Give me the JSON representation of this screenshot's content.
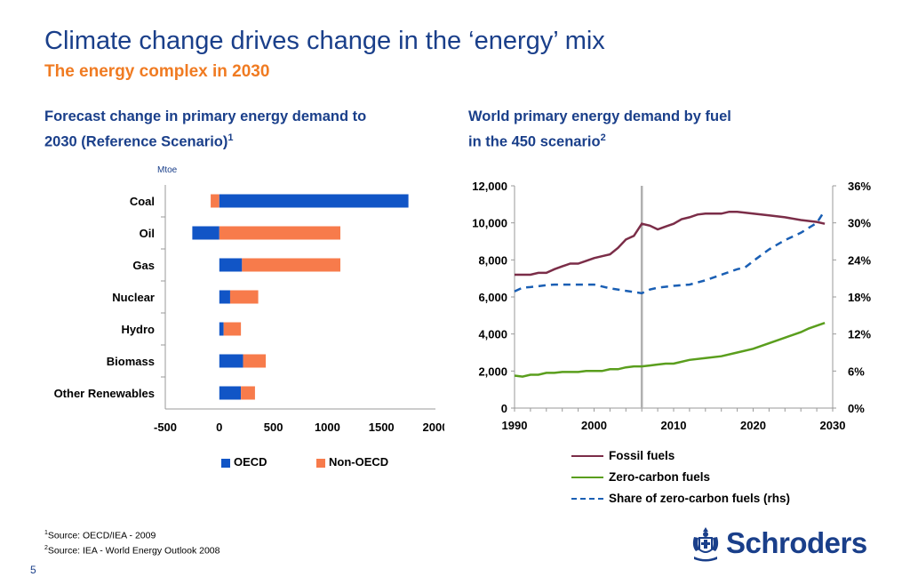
{
  "header": {
    "title": "Climate change drives change in the ‘energy’ mix",
    "subtitle": "The energy complex in 2030"
  },
  "left_panel": {
    "title_line1": "Forecast change in primary energy demand to",
    "title_line2": "2030 (Reference Scenario)",
    "title_sup": "1"
  },
  "right_panel": {
    "title_line1": "World primary energy demand by fuel",
    "title_line2": "in the 450 scenario",
    "title_sup": "2"
  },
  "colors": {
    "oecd": "#1155c6",
    "non_oecd": "#f77b4b",
    "fossil": "#7b2d48",
    "zero_carbon": "#5a9e1d",
    "share": "#1a5fb4",
    "brand": "#1a3f8a",
    "accent": "#f07b22"
  },
  "chart_data": [
    {
      "type": "bar",
      "orientation": "horizontal",
      "stacked": true,
      "unit_label": "Mtoe",
      "categories": [
        "Coal",
        "Oil",
        "Gas",
        "Nuclear",
        "Hydro",
        "Biomass",
        "Other Renewables"
      ],
      "series": [
        {
          "name": "OECD",
          "values": [
            -80,
            -250,
            210,
            100,
            40,
            220,
            200
          ]
        },
        {
          "name": "Non-OECD",
          "values": [
            1750,
            1120,
            1120,
            360,
            200,
            430,
            330
          ]
        }
      ],
      "value_semantics": "OECD value is its own bar; for Coal OECD is negative and Non-OECD extends from 0. For other categories Non-OECD stacks beyond OECD to the total shown.",
      "xlim": [
        -500,
        2000
      ],
      "xticks": [
        "-500",
        "0",
        "500",
        "1000",
        "1500",
        "2000"
      ],
      "legend": "bottom"
    },
    {
      "type": "line",
      "x_ticks": [
        "1990",
        "2000",
        "2010",
        "2020",
        "2030"
      ],
      "xlim": [
        1990,
        2030
      ],
      "y_left_ticks": [
        "0",
        "2,000",
        "4,000",
        "6,000",
        "8,000",
        "10,000",
        "12,000"
      ],
      "ylim_left": [
        0,
        12000
      ],
      "y_right_ticks": [
        "0%",
        "6%",
        "12%",
        "18%",
        "24%",
        "30%",
        "36%"
      ],
      "ylim_right": [
        0,
        36
      ],
      "vertical_marker_x": 2006,
      "legend": "bottom",
      "series": [
        {
          "name": "Fossil fuels",
          "axis": "left",
          "x": [
            1990,
            1992,
            1993,
            1994,
            1995,
            1996,
            1997,
            1998,
            1999,
            2000,
            2001,
            2002,
            2003,
            2004,
            2005,
            2006,
            2007,
            2008,
            2009,
            2010,
            2011,
            2012,
            2013,
            2014,
            2015,
            2016,
            2017,
            2018,
            2019,
            2020,
            2022,
            2024,
            2026,
            2028,
            2029
          ],
          "y": [
            7200,
            7200,
            7300,
            7300,
            7500,
            7650,
            7800,
            7800,
            7950,
            8100,
            8200,
            8300,
            8650,
            9100,
            9300,
            9950,
            9850,
            9650,
            9800,
            9950,
            10200,
            10300,
            10450,
            10500,
            10500,
            10500,
            10600,
            10600,
            10550,
            10500,
            10400,
            10300,
            10150,
            10050,
            9950
          ]
        },
        {
          "name": "Zero-carbon fuels",
          "axis": "left",
          "x": [
            1990,
            1991,
            1992,
            1993,
            1994,
            1995,
            1996,
            1997,
            1998,
            1999,
            2000,
            2001,
            2002,
            2003,
            2004,
            2005,
            2006,
            2007,
            2008,
            2009,
            2010,
            2012,
            2014,
            2016,
            2018,
            2020,
            2022,
            2024,
            2026,
            2027,
            2028,
            2029
          ],
          "y": [
            1750,
            1700,
            1800,
            1800,
            1900,
            1900,
            1950,
            1950,
            1950,
            2000,
            2000,
            2000,
            2100,
            2100,
            2200,
            2250,
            2250,
            2300,
            2350,
            2400,
            2400,
            2600,
            2700,
            2800,
            3000,
            3200,
            3500,
            3800,
            4100,
            4300,
            4450,
            4600
          ],
          "style": "solid"
        },
        {
          "name": "Share of zero-carbon fuels (rhs)",
          "axis": "right",
          "x": [
            1990,
            1991,
            1992,
            1994,
            1995,
            1996,
            1998,
            2000,
            2001,
            2002,
            2004,
            2006,
            2007,
            2008,
            2010,
            2012,
            2014,
            2016,
            2018,
            2019,
            2020,
            2022,
            2024,
            2026,
            2028,
            2029
          ],
          "y": [
            18.9,
            19.5,
            19.6,
            19.9,
            20.0,
            20.0,
            20.0,
            20.0,
            19.7,
            19.4,
            19.0,
            18.6,
            19.2,
            19.5,
            19.8,
            20.0,
            20.7,
            21.6,
            22.5,
            22.8,
            23.8,
            25.7,
            27.2,
            28.4,
            30.0,
            32.0
          ],
          "style": "dashed"
        }
      ]
    }
  ],
  "sources": {
    "line1_sup": "1",
    "line1": "Source: OECD/IEA - 2009",
    "line2_sup": "2",
    "line2": "Source: IEA - World Energy Outlook 2008"
  },
  "footer": {
    "page_number": "5",
    "logo_text": "Schroders"
  }
}
